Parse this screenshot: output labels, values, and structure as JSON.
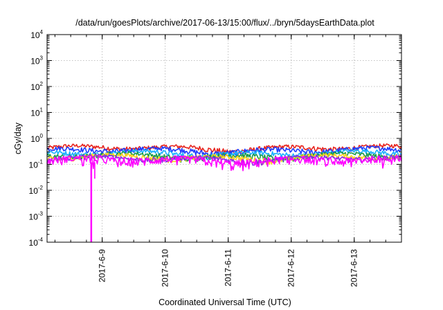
{
  "chart_data": {
    "type": "line",
    "title": "/data/run/goesPlots/archive/2017-06-13/15:00/flux/../bryn/5daysEarthData.plot",
    "xlabel": "Coordinated Universal Time (UTC)",
    "ylabel": "cGy/day",
    "y_scale": "log",
    "ylim": [
      0.0001,
      10000
    ],
    "xlim": [
      "2017-06-08T03:00",
      "2017-06-13T18:00"
    ],
    "grid": true,
    "y_ticks": [
      {
        "base": "10",
        "exp": "-4",
        "value": 0.0001
      },
      {
        "base": "10",
        "exp": "-3",
        "value": 0.001
      },
      {
        "base": "10",
        "exp": "-2",
        "value": 0.01
      },
      {
        "base": "10",
        "exp": "-1",
        "value": 0.1
      },
      {
        "base": "10",
        "exp": "0",
        "value": 1
      },
      {
        "base": "10",
        "exp": "1",
        "value": 10
      },
      {
        "base": "10",
        "exp": "2",
        "value": 100
      },
      {
        "base": "10",
        "exp": "3",
        "value": 1000
      },
      {
        "base": "10",
        "exp": "4",
        "value": 10000
      }
    ],
    "x_ticks": [
      {
        "label": "2017-6-9",
        "value": "2017-06-09T00:00"
      },
      {
        "label": "2017-6-10",
        "value": "2017-06-10T00:00"
      },
      {
        "label": "2017-6-11",
        "value": "2017-06-11T00:00"
      },
      {
        "label": "2017-6-12",
        "value": "2017-06-12T00:00"
      },
      {
        "label": "2017-6-13",
        "value": "2017-06-13T00:00"
      }
    ],
    "series": [
      {
        "color": "#e8241e",
        "level": 0.42,
        "jitter": 0.09
      },
      {
        "color": "#1e3cff",
        "level": 0.34,
        "jitter": 0.08
      },
      {
        "color": "#1ab0ff",
        "level": 0.26,
        "jitter": 0.06
      },
      {
        "color": "#1a9a4a",
        "level": 0.21,
        "jitter": 0.05
      },
      {
        "color": "#ffd21a",
        "level": 0.185,
        "jitter": 0.04
      },
      {
        "color": "#8a2be2",
        "level": 0.165,
        "jitter": 0.035
      },
      {
        "color": "#ff00ff",
        "level": 0.14,
        "jitter": 0.05
      }
    ],
    "events": [
      {
        "series_color": "#ff00ff",
        "start": "2017-06-08T19:30",
        "end": "2017-06-08T19:45",
        "min_value": 0.0001
      },
      {
        "series_color": "#ff00ff",
        "at": "2017-06-08T21:10",
        "min_value": 0.028
      }
    ]
  }
}
